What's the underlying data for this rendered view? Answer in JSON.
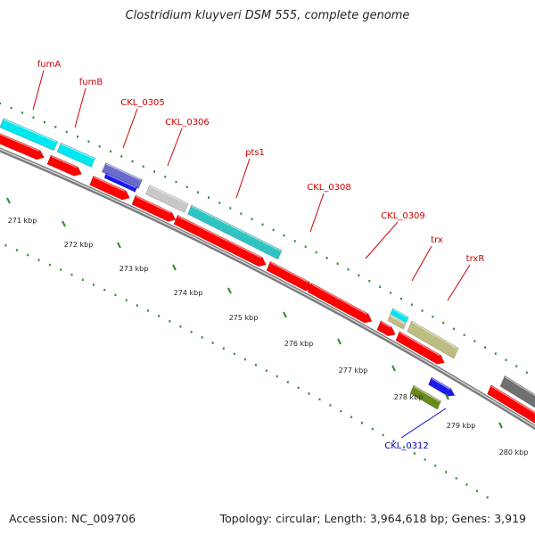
{
  "title": "Clostridium kluyveri DSM 555, complete genome",
  "footer": {
    "accession": "Accession: NC_009706",
    "topology": "Topology: circular; Length: 3,964,618 bp; Genes: 3,919"
  },
  "colors": {
    "label_red": "#cc0000",
    "label_blue": "#0000cc",
    "dot_green": "#2e8b2e",
    "backbone_gray": "#9a9a9a",
    "gene_red": "#ff0000",
    "gene_cyan": "#00e6ee",
    "gene_teal": "#2ec4c4",
    "gene_blue": "#1a1aee",
    "gene_purple": "#6b6bcc",
    "gene_silver": "#c8c8c8",
    "gene_olive": "#bdbd80",
    "gene_darkgreen": "#6a8a1a",
    "gene_darkgray": "#707070"
  },
  "ticks": [
    {
      "label": "271 kbp"
    },
    {
      "label": "272 kbp"
    },
    {
      "label": "273 kbp"
    },
    {
      "label": "274 kbp"
    },
    {
      "label": "275 kbp"
    },
    {
      "label": "276 kbp"
    },
    {
      "label": "277 kbp"
    },
    {
      "label": "278 kbp"
    },
    {
      "label": "279 kbp"
    },
    {
      "label": "280 kbp"
    }
  ],
  "gene_labels": [
    {
      "name": "fumA",
      "color": "#cc0000"
    },
    {
      "name": "fumB",
      "color": "#cc0000"
    },
    {
      "name": "CKL_0305",
      "color": "#cc0000"
    },
    {
      "name": "CKL_0306",
      "color": "#cc0000"
    },
    {
      "name": "pts1",
      "color": "#cc0000"
    },
    {
      "name": "CKL_0308",
      "color": "#cc0000"
    },
    {
      "name": "CKL_0309",
      "color": "#cc0000"
    },
    {
      "name": "trx",
      "color": "#cc0000"
    },
    {
      "name": "trxR",
      "color": "#cc0000"
    },
    {
      "name": "CKL_0312",
      "color": "#0000cc"
    }
  ]
}
